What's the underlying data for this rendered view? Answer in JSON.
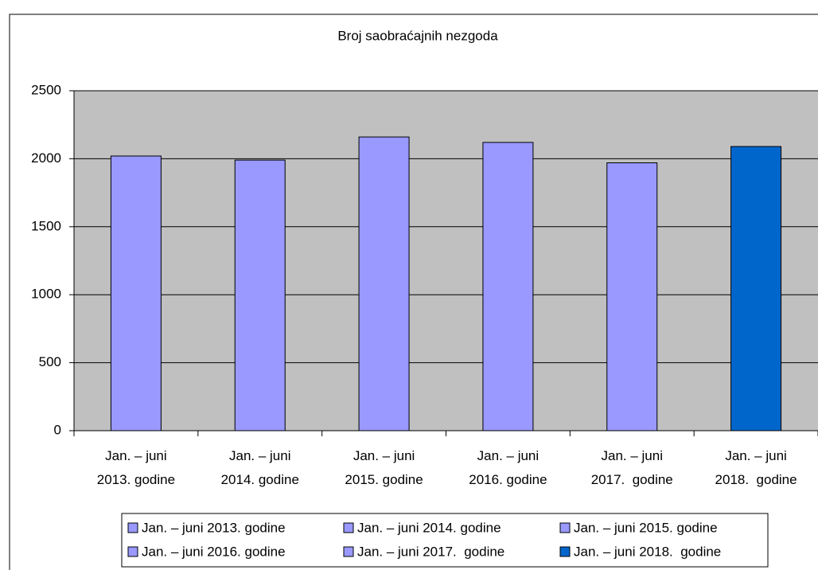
{
  "chart_data": {
    "type": "bar",
    "title": "Broj saobraćajnih nezgoda",
    "categories": [
      "Jan. – juni 2013. godine",
      "Jan. – juni 2014. godine",
      "Jan. – juni 2015. godine",
      "Jan. – juni 2016. godine",
      "Jan. – juni 2017.  godine",
      "Jan. – juni 2018.  godine"
    ],
    "values": [
      2020,
      1990,
      2160,
      2120,
      1970,
      2090
    ],
    "colors": [
      "#9999ff",
      "#9999ff",
      "#9999ff",
      "#9999ff",
      "#9999ff",
      "#0066cc"
    ],
    "ylim": [
      0,
      2500
    ],
    "yticks": [
      0,
      500,
      1000,
      1500,
      2000,
      2500
    ],
    "grid": true,
    "legend": "bottom"
  }
}
